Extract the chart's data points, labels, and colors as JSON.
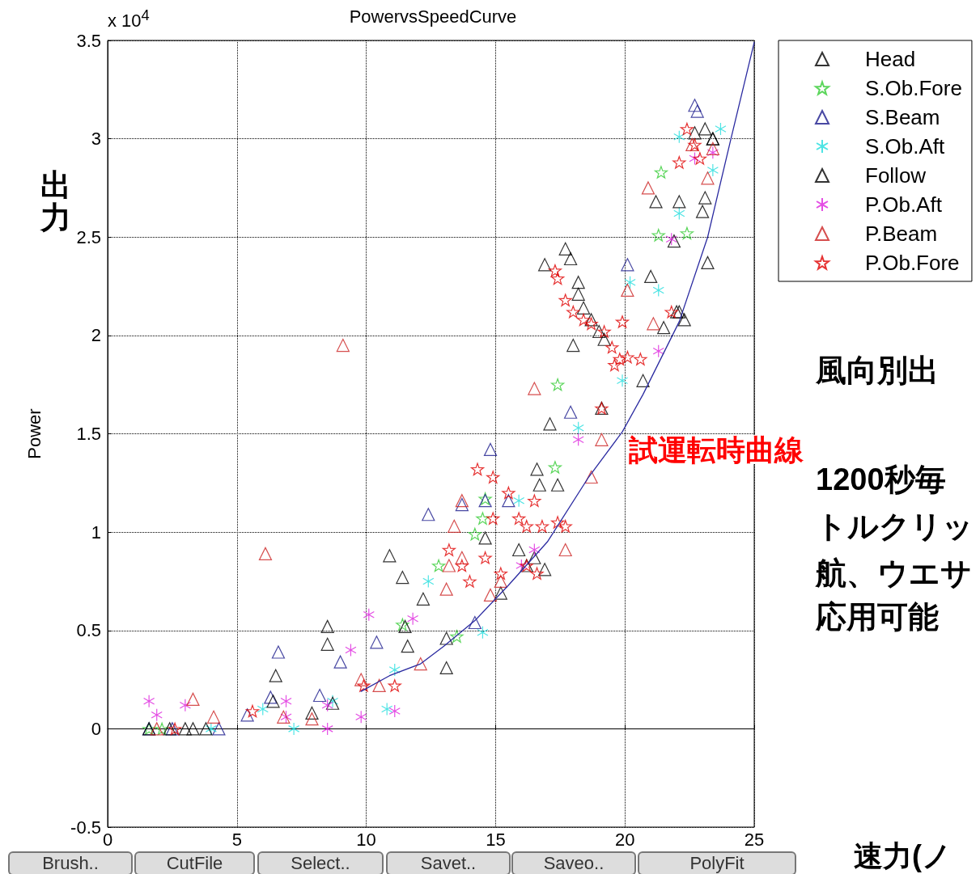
{
  "chart_data": {
    "type": "scatter",
    "title": "PowervsSpeedCurve",
    "xlabel": "速力(ノ",
    "ylabel": "Power",
    "xlim": [
      0,
      25
    ],
    "xticks": [
      0,
      5,
      10,
      15,
      20,
      25
    ],
    "ylim": [
      -0.5,
      3.5
    ],
    "yticks": [
      -0.5,
      0,
      0.5,
      1,
      1.5,
      2,
      2.5,
      3,
      3.5
    ],
    "grid": true,
    "legend": "top right",
    "annotations": [
      "x 10$^{4}$",
      "出力",
      "風向別出",
      "1200秒毎",
      "トルクリッ",
      "航、ウエサ",
      "応用可能",
      "Brush..",
      "CutFile",
      "Select..",
      "Savet..",
      "Saveo..",
      "PolyFit"
    ],
    "series": [
      {
        "name": "Head",
        "color": "#000000",
        "marker": "triangle",
        "x": [
          10.9,
          11.4,
          18.0,
          16.9,
          17.7,
          17.9,
          18.2,
          18.2,
          18.4,
          18.7,
          19.0,
          19.2,
          15.9,
          16.2,
          16.5,
          16.9,
          14.6,
          23.1,
          23.4,
          22.7,
          22.0
        ],
        "values": [
          0.88,
          0.77,
          1.95,
          2.36,
          2.44,
          2.39,
          2.27,
          2.21,
          2.14,
          2.08,
          2.02,
          1.98,
          0.91,
          0.83,
          0.87,
          0.81,
          0.97,
          3.05,
          3.0,
          3.03,
          2.12
        ]
      },
      {
        "name": "S.Ob.Fore",
        "color": "#33cc33",
        "marker": "star",
        "x": [
          1.6,
          2.1,
          11.4,
          13.5,
          12.8,
          17.4,
          17.3,
          21.4,
          21.3,
          22.4,
          14.6,
          14.5,
          14.2
        ],
        "values": [
          0,
          0,
          0.53,
          0.47,
          0.83,
          1.75,
          1.33,
          2.83,
          2.51,
          2.52,
          1.17,
          1.07,
          0.99
        ]
      },
      {
        "name": "S.Beam",
        "color": "#1a1a8c",
        "marker": "triangle",
        "x": [
          1.6,
          2.5,
          4.3,
          5.4,
          6.6,
          6.3,
          9.0,
          8.2,
          10.4,
          12.4,
          13.7,
          14.8,
          14.6,
          15.5,
          17.9,
          20.1,
          22.7,
          22.8,
          14.2
        ],
        "values": [
          0,
          0,
          0,
          0.07,
          0.39,
          0.16,
          0.34,
          0.17,
          0.44,
          1.09,
          1.14,
          1.42,
          1.16,
          1.16,
          1.61,
          2.36,
          3.17,
          3.14,
          0.54
        ]
      },
      {
        "name": "S.Ob.Aft",
        "color": "#22dddd",
        "marker": "cross",
        "x": [
          4.0,
          6.0,
          7.2,
          8.7,
          10.8,
          11.1,
          12.4,
          14.5,
          18.2,
          19.9,
          20.2,
          21.3,
          22.1,
          22.1,
          23.7,
          23.4,
          15.9
        ],
        "values": [
          0,
          0.1,
          0,
          0.14,
          0.1,
          0.3,
          0.75,
          0.49,
          1.53,
          1.77,
          2.27,
          2.23,
          2.62,
          3.01,
          3.05,
          2.84,
          1.16
        ]
      },
      {
        "name": "Follow",
        "color": "#000000",
        "marker": "triangle",
        "x": [
          1.6,
          2.4,
          3.0,
          3.3,
          3.8,
          6.4,
          6.5,
          7.9,
          8.5,
          8.5,
          8.7,
          11.5,
          11.6,
          12.2,
          13.1,
          13.1,
          17.1,
          17.4,
          16.7,
          15.2,
          20.7,
          21.2,
          22.1,
          21.9,
          23.1,
          23.2,
          23.0,
          21.0,
          22.1,
          22.3,
          21.5,
          19.1,
          16.6,
          23.4
        ],
        "values": [
          0,
          0,
          0,
          0,
          0,
          0.14,
          0.27,
          0.08,
          0.43,
          0.52,
          0.13,
          0.52,
          0.42,
          0.66,
          0.31,
          0.46,
          1.55,
          1.24,
          1.24,
          0.69,
          1.77,
          2.68,
          2.68,
          2.48,
          2.7,
          2.37,
          2.63,
          2.3,
          2.12,
          2.08,
          2.04,
          1.63,
          1.32,
          3.0
        ]
      },
      {
        "name": "P.Ob.Aft",
        "color": "#dd22dd",
        "marker": "cross",
        "x": [
          1.6,
          1.9,
          3.0,
          6.9,
          6.9,
          8.5,
          8.5,
          9.4,
          9.8,
          10.1,
          11.8,
          11.1,
          16.0,
          16.5,
          18.2,
          21.3,
          21.8,
          23.4,
          22.7
        ],
        "values": [
          0.14,
          0.07,
          0.12,
          0.14,
          0.06,
          0,
          0.12,
          0.4,
          0.06,
          0.58,
          0.56,
          0.09,
          0.83,
          0.91,
          1.47,
          1.92,
          2.49,
          2.93,
          2.9
        ]
      },
      {
        "name": "P.Beam",
        "color": "#cc2222",
        "marker": "triangle",
        "x": [
          1.9,
          3.3,
          4.1,
          6.1,
          9.1,
          6.8,
          7.9,
          9.8,
          10.5,
          12.1,
          13.1,
          13.2,
          13.7,
          14.8,
          17.7,
          16.5,
          18.7,
          19.1,
          21.1,
          20.9,
          20.1,
          23.2,
          22.6,
          23.4,
          13.7,
          13.4,
          15.2
        ],
        "values": [
          0,
          0.15,
          0.06,
          0.89,
          1.95,
          0.06,
          0.05,
          0.25,
          0.22,
          0.33,
          0.71,
          0.83,
          1.16,
          0.68,
          0.91,
          1.73,
          1.28,
          1.47,
          2.06,
          2.75,
          2.23,
          2.8,
          2.97,
          2.95,
          0.87,
          1.03,
          0.75
        ]
      },
      {
        "name": "P.Ob.Fore",
        "color": "#e00000",
        "marker": "star",
        "x": [
          2.6,
          5.6,
          9.9,
          11.1,
          17.3,
          17.4,
          17.7,
          18.0,
          18.4,
          18.7,
          19.2,
          19.5,
          19.8,
          20.1,
          20.6,
          19.6,
          19.9,
          19.1,
          14.3,
          14.9,
          15.5,
          15.9,
          14.6,
          13.7,
          14.0,
          15.2,
          16.2,
          16.8,
          17.4,
          17.7,
          16.5,
          14.9,
          13.2,
          16.2,
          16.6,
          22.4,
          22.7,
          22.9,
          22.1,
          21.8
        ],
        "values": [
          0,
          0.09,
          0.22,
          0.22,
          2.33,
          2.29,
          2.18,
          2.12,
          2.08,
          2.06,
          2.02,
          1.94,
          1.88,
          1.89,
          1.88,
          1.85,
          2.07,
          1.63,
          1.32,
          1.28,
          1.2,
          1.07,
          0.87,
          0.83,
          0.75,
          0.79,
          1.03,
          1.03,
          1.05,
          1.03,
          1.16,
          1.07,
          0.91,
          0.83,
          0.79,
          3.05,
          2.97,
          2.9,
          2.88,
          2.12
        ]
      },
      {
        "name": "試運転時曲線",
        "type": "line",
        "color": "#2a2aa0",
        "marker": "none",
        "line_style": "solid",
        "x": [
          9.8,
          10.9,
          12.1,
          13.0,
          14.2,
          15.5,
          17.0,
          18.6,
          19.9,
          20.7,
          22.1,
          23.2,
          24.1,
          25.0
        ],
        "values": [
          0.19,
          0.27,
          0.33,
          0.42,
          0.55,
          0.73,
          0.95,
          1.28,
          1.51,
          1.7,
          2.07,
          2.5,
          3.0,
          3.49
        ]
      }
    ]
  }
}
